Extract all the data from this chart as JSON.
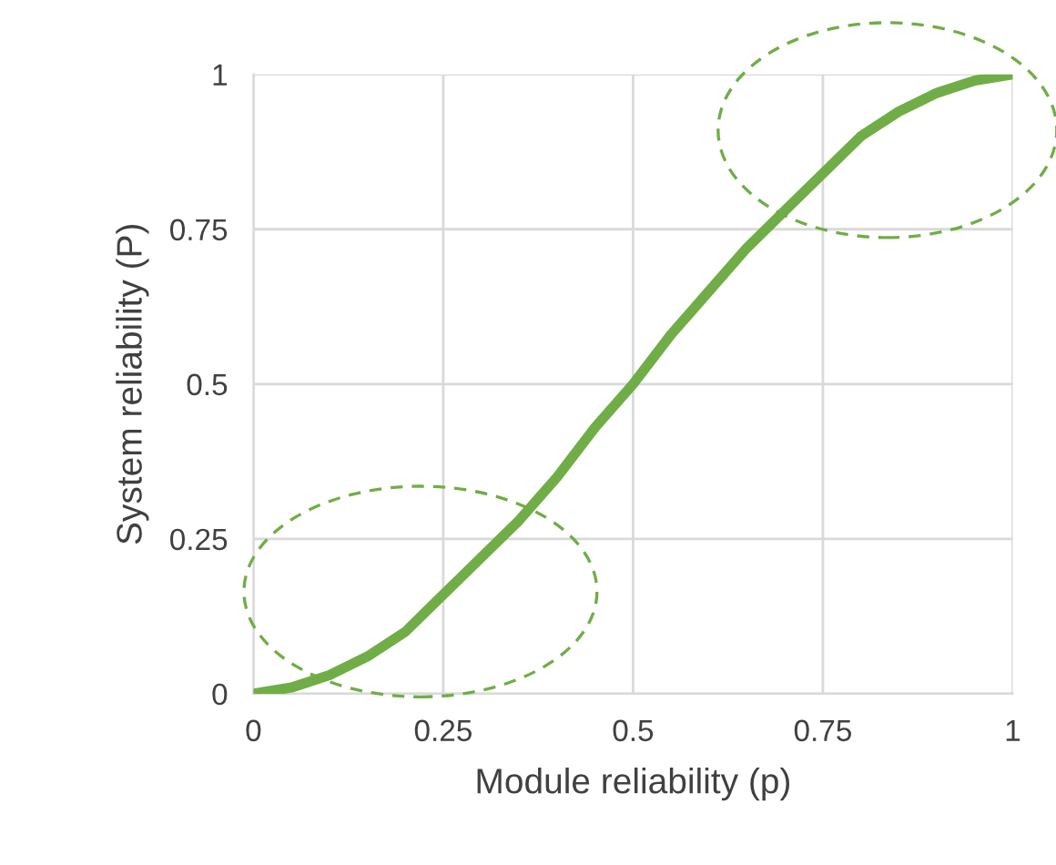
{
  "chart_data": {
    "type": "line",
    "xlabel": "Module reliability (p)",
    "ylabel": "System reliability (P)",
    "x": [
      0,
      0.05,
      0.1,
      0.15,
      0.2,
      0.25,
      0.3,
      0.35,
      0.4,
      0.45,
      0.5,
      0.55,
      0.6,
      0.65,
      0.7,
      0.75,
      0.8,
      0.85,
      0.9,
      0.95,
      1
    ],
    "series": [
      {
        "color": "#70ad47",
        "values": [
          0,
          0.01,
          0.03,
          0.06,
          0.1,
          0.16,
          0.22,
          0.28,
          0.35,
          0.43,
          0.5,
          0.58,
          0.65,
          0.72,
          0.78,
          0.84,
          0.9,
          0.94,
          0.97,
          0.99,
          1
        ]
      }
    ],
    "xlim": [
      0,
      1
    ],
    "ylim": [
      0,
      1
    ],
    "xticks": [
      0,
      0.25,
      0.5,
      0.75,
      1
    ],
    "yticks": [
      0,
      0.25,
      0.5,
      0.75,
      1
    ],
    "grid": true,
    "line_style": "solid",
    "marker": "none"
  }
}
